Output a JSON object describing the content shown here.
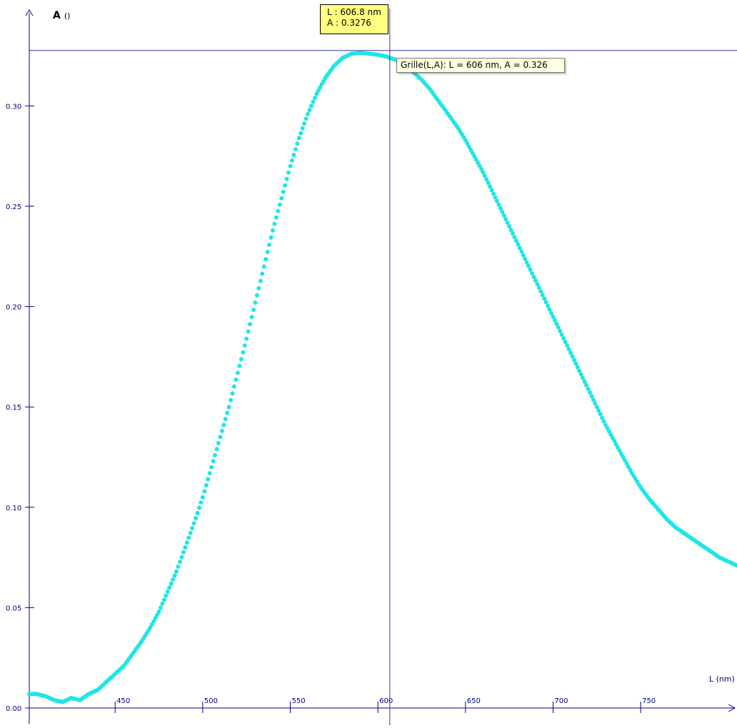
{
  "colors": {
    "series": "#1ee6e6",
    "axis": "#000080",
    "cursor": "#3333aa"
  },
  "y_axis": {
    "name": "A",
    "unit": "()"
  },
  "x_axis": {
    "label": "L (nm)"
  },
  "cursor_readout": {
    "line1": "L : 606.8 nm",
    "line2": "A : 0.3276"
  },
  "tooltip": {
    "text": "Grille(L,A): L = 606 nm, A = 0.326"
  },
  "chart_data": {
    "type": "scatter",
    "xlabel": "L (nm)",
    "ylabel": "A ()",
    "xlim": [
      401,
      805
    ],
    "ylim": [
      0,
      0.3325
    ],
    "x_ticks": [
      {
        "value": 450,
        "label": "450"
      },
      {
        "value": 500,
        "label": "500"
      },
      {
        "value": 550,
        "label": "550"
      },
      {
        "value": 600,
        "label": "600"
      },
      {
        "value": 650,
        "label": "650"
      },
      {
        "value": 700,
        "label": "700"
      },
      {
        "value": 750,
        "label": "750"
      }
    ],
    "y_ticks": [
      {
        "value": 0.0,
        "label": "0.00"
      },
      {
        "value": 0.05,
        "label": "0.05"
      },
      {
        "value": 0.1,
        "label": "0.10"
      },
      {
        "value": 0.15,
        "label": "0.15"
      },
      {
        "value": 0.2,
        "label": "0.20"
      },
      {
        "value": 0.25,
        "label": "0.25"
      },
      {
        "value": 0.3,
        "label": "0.30"
      }
    ],
    "cursor": {
      "x": 606.8,
      "y": 0.3276
    },
    "grid": false,
    "series": [
      {
        "points": [
          [
            401,
            0.007
          ],
          [
            405,
            0.007
          ],
          [
            410,
            0.006
          ],
          [
            415,
            0.004
          ],
          [
            420,
            0.003
          ],
          [
            425,
            0.005
          ],
          [
            430,
            0.004
          ],
          [
            435,
            0.007
          ],
          [
            440,
            0.009
          ],
          [
            445,
            0.013
          ],
          [
            450,
            0.017
          ],
          [
            455,
            0.021
          ],
          [
            460,
            0.027
          ],
          [
            465,
            0.033
          ],
          [
            470,
            0.04
          ],
          [
            475,
            0.048
          ],
          [
            480,
            0.058
          ],
          [
            485,
            0.068
          ],
          [
            490,
            0.08
          ],
          [
            495,
            0.092
          ],
          [
            500,
            0.105
          ],
          [
            505,
            0.12
          ],
          [
            510,
            0.135
          ],
          [
            515,
            0.15
          ],
          [
            520,
            0.167
          ],
          [
            525,
            0.184
          ],
          [
            530,
            0.202
          ],
          [
            535,
            0.22
          ],
          [
            540,
            0.238
          ],
          [
            545,
            0.254
          ],
          [
            550,
            0.27
          ],
          [
            555,
            0.284
          ],
          [
            560,
            0.296
          ],
          [
            565,
            0.306
          ],
          [
            570,
            0.314
          ],
          [
            575,
            0.32
          ],
          [
            580,
            0.324
          ],
          [
            585,
            0.326
          ],
          [
            590,
            0.3265
          ],
          [
            595,
            0.326
          ],
          [
            600,
            0.3255
          ],
          [
            605,
            0.3245
          ],
          [
            610,
            0.323
          ],
          [
            615,
            0.32
          ],
          [
            620,
            0.317
          ],
          [
            625,
            0.313
          ],
          [
            630,
            0.308
          ],
          [
            635,
            0.302
          ],
          [
            640,
            0.296
          ],
          [
            645,
            0.29
          ],
          [
            650,
            0.283
          ],
          [
            655,
            0.275
          ],
          [
            660,
            0.267
          ],
          [
            665,
            0.258
          ],
          [
            670,
            0.249
          ],
          [
            675,
            0.24
          ],
          [
            680,
            0.231
          ],
          [
            685,
            0.222
          ],
          [
            690,
            0.213
          ],
          [
            695,
            0.204
          ],
          [
            700,
            0.195
          ],
          [
            705,
            0.186
          ],
          [
            710,
            0.177
          ],
          [
            715,
            0.168
          ],
          [
            720,
            0.159
          ],
          [
            725,
            0.15
          ],
          [
            730,
            0.141
          ],
          [
            735,
            0.133
          ],
          [
            740,
            0.125
          ],
          [
            745,
            0.117
          ],
          [
            750,
            0.11
          ],
          [
            755,
            0.104
          ],
          [
            760,
            0.099
          ],
          [
            765,
            0.094
          ],
          [
            770,
            0.09
          ],
          [
            775,
            0.087
          ],
          [
            780,
            0.084
          ],
          [
            785,
            0.081
          ],
          [
            790,
            0.078
          ],
          [
            795,
            0.075
          ],
          [
            800,
            0.073
          ],
          [
            805,
            0.071
          ]
        ]
      }
    ]
  }
}
